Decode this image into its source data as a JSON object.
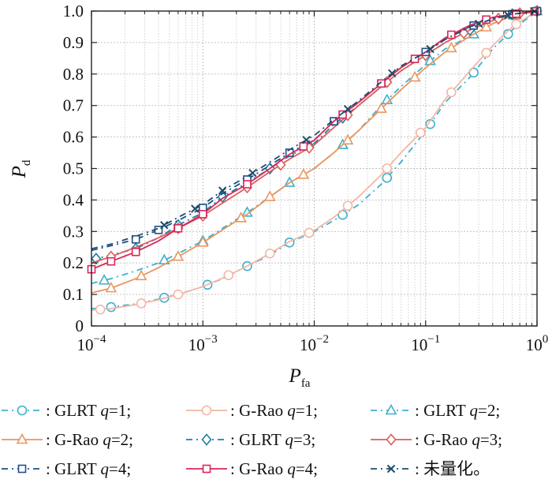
{
  "chart_data": {
    "type": "line",
    "xscale": "log",
    "xlim": [
      0.0001,
      1
    ],
    "ylim": [
      0,
      1
    ],
    "grid": true,
    "xlabel": {
      "main": "P",
      "sub": "fa"
    },
    "ylabel": {
      "main": "P",
      "sub": "d"
    },
    "xticks": [
      {
        "value": 0.0001,
        "base": "10",
        "exp": "−4"
      },
      {
        "value": 0.001,
        "base": "10",
        "exp": "−3"
      },
      {
        "value": 0.01,
        "base": "10",
        "exp": "−2"
      },
      {
        "value": 0.1,
        "base": "10",
        "exp": "−1"
      },
      {
        "value": 1,
        "base": "10",
        "exp": "0"
      }
    ],
    "yticks": [
      "0",
      "0.1",
      "0.2",
      "0.3",
      "0.4",
      "0.5",
      "0.6",
      "0.7",
      "0.8",
      "0.9",
      "1.0"
    ],
    "legend_placement": "bottom",
    "series": [
      {
        "name": "GLRT q=1;",
        "label_pre": ": GLRT ",
        "label_q": "q",
        "label_post": "=1;",
        "color": "#3db0cf",
        "dash": "8,5,2,5",
        "marker": "circle",
        "x": [
          0.0001,
          0.00015,
          0.00025,
          0.0004,
          0.0006,
          0.001,
          0.0015,
          0.0025,
          0.004,
          0.006,
          0.01,
          0.015,
          0.025,
          0.04,
          0.06,
          0.1,
          0.15,
          0.25,
          0.4,
          0.6,
          1
        ],
        "y": [
          0.055,
          0.06,
          0.07,
          0.085,
          0.1,
          0.125,
          0.15,
          0.19,
          0.225,
          0.265,
          0.3,
          0.335,
          0.385,
          0.45,
          0.52,
          0.62,
          0.71,
          0.79,
          0.88,
          0.94,
          1.0
        ],
        "mx": [
          0.00015,
          0.00045,
          0.0011,
          0.0025,
          0.006,
          0.018,
          0.045,
          0.11,
          0.27,
          0.55,
          1
        ]
      },
      {
        "name": "G-Rao q=1;",
        "label_pre": ": G-Rao ",
        "label_q": "q",
        "label_post": "=1;",
        "color": "#f3b7a4",
        "dash": "",
        "marker": "circle",
        "x": [
          0.0001,
          0.00015,
          0.00025,
          0.0004,
          0.0006,
          0.001,
          0.0015,
          0.0025,
          0.004,
          0.006,
          0.01,
          0.015,
          0.025,
          0.04,
          0.06,
          0.1,
          0.15,
          0.25,
          0.4,
          0.6,
          1
        ],
        "y": [
          0.05,
          0.055,
          0.068,
          0.083,
          0.1,
          0.125,
          0.152,
          0.19,
          0.23,
          0.268,
          0.303,
          0.345,
          0.41,
          0.48,
          0.55,
          0.63,
          0.72,
          0.81,
          0.89,
          0.95,
          1.0
        ],
        "mx": [
          0.00012,
          0.00028,
          0.0006,
          0.0017,
          0.004,
          0.009,
          0.02,
          0.045,
          0.09,
          0.17,
          0.35,
          0.65,
          1
        ]
      },
      {
        "name": "GLRT q=2;",
        "label_pre": ": GLRT ",
        "label_q": "q",
        "label_post": "=2;",
        "color": "#3db0cf",
        "dash": "8,5,2,5",
        "marker": "triangle",
        "x": [
          0.0001,
          0.00015,
          0.00025,
          0.0004,
          0.0006,
          0.001,
          0.0015,
          0.0025,
          0.004,
          0.006,
          0.01,
          0.015,
          0.025,
          0.04,
          0.06,
          0.1,
          0.15,
          0.25,
          0.4,
          0.6,
          1
        ],
        "y": [
          0.135,
          0.15,
          0.175,
          0.2,
          0.23,
          0.27,
          0.31,
          0.36,
          0.41,
          0.455,
          0.5,
          0.55,
          0.62,
          0.7,
          0.76,
          0.83,
          0.88,
          0.92,
          0.96,
          0.985,
          1.0
        ],
        "mx": [
          0.00013,
          0.00045,
          0.001,
          0.0025,
          0.006,
          0.018,
          0.045,
          0.11,
          0.27,
          0.62,
          1
        ]
      },
      {
        "name": "G-Rao q=2;",
        "label_pre": ": G-Rao ",
        "label_q": "q",
        "label_post": "=2;",
        "color": "#e9965f",
        "dash": "",
        "marker": "triangle",
        "x": [
          0.0001,
          0.00015,
          0.00025,
          0.0004,
          0.0006,
          0.001,
          0.0015,
          0.0025,
          0.004,
          0.006,
          0.01,
          0.015,
          0.025,
          0.04,
          0.06,
          0.1,
          0.15,
          0.25,
          0.4,
          0.6,
          1
        ],
        "y": [
          0.105,
          0.12,
          0.15,
          0.185,
          0.22,
          0.265,
          0.305,
          0.355,
          0.41,
          0.455,
          0.5,
          0.55,
          0.62,
          0.69,
          0.75,
          0.82,
          0.87,
          0.92,
          0.96,
          0.985,
          1.0
        ],
        "mx": [
          0.00015,
          0.00028,
          0.0006,
          0.001,
          0.0022,
          0.004,
          0.008,
          0.02,
          0.04,
          0.08,
          0.17,
          0.35,
          0.65,
          1
        ]
      },
      {
        "name": "GLRT q=3;",
        "label_pre": ": GLRT ",
        "label_q": "q",
        "label_post": "=3;",
        "color": "#1f7fa3",
        "dash": "8,5,2,5",
        "marker": "diamond",
        "x": [
          0.0001,
          0.00015,
          0.00025,
          0.0004,
          0.0006,
          0.001,
          0.0015,
          0.0025,
          0.004,
          0.006,
          0.01,
          0.015,
          0.025,
          0.04,
          0.06,
          0.1,
          0.15,
          0.25,
          0.4,
          0.6,
          1
        ],
        "y": [
          0.21,
          0.225,
          0.245,
          0.28,
          0.32,
          0.36,
          0.41,
          0.455,
          0.5,
          0.54,
          0.58,
          0.64,
          0.7,
          0.76,
          0.81,
          0.86,
          0.9,
          0.94,
          0.97,
          0.99,
          1.0
        ],
        "mx": [
          0.00011,
          0.00025,
          0.0006,
          0.0015,
          0.004,
          0.009,
          0.018,
          0.045,
          0.1,
          0.25,
          0.6,
          1
        ]
      },
      {
        "name": "G-Rao q=3;",
        "label_pre": ": G-Rao ",
        "label_q": "q",
        "label_post": "=3;",
        "color": "#d9605a",
        "dash": "",
        "marker": "diamond",
        "x": [
          0.0001,
          0.00015,
          0.00025,
          0.0004,
          0.0006,
          0.001,
          0.0015,
          0.0025,
          0.004,
          0.006,
          0.01,
          0.015,
          0.025,
          0.04,
          0.06,
          0.1,
          0.15,
          0.25,
          0.4,
          0.6,
          1
        ],
        "y": [
          0.2,
          0.22,
          0.25,
          0.28,
          0.31,
          0.35,
          0.39,
          0.44,
          0.49,
          0.53,
          0.575,
          0.63,
          0.7,
          0.76,
          0.81,
          0.86,
          0.9,
          0.94,
          0.97,
          0.99,
          1.0
        ],
        "mx": [
          0.00015,
          0.0006,
          0.001,
          0.0025,
          0.005,
          0.009,
          0.02,
          0.045,
          0.1,
          0.22,
          0.45,
          0.7,
          1
        ]
      },
      {
        "name": "GLRT q=4;",
        "label_pre": ": GLRT ",
        "label_q": "q",
        "label_post": "=4;",
        "color": "#1f4f8a",
        "dash": "8,5,2,5",
        "marker": "square",
        "x": [
          0.0001,
          0.00015,
          0.00025,
          0.0004,
          0.0006,
          0.001,
          0.0015,
          0.0025,
          0.004,
          0.006,
          0.01,
          0.015,
          0.025,
          0.04,
          0.06,
          0.1,
          0.15,
          0.25,
          0.4,
          0.6,
          1
        ],
        "y": [
          0.24,
          0.255,
          0.275,
          0.305,
          0.335,
          0.375,
          0.42,
          0.465,
          0.51,
          0.55,
          0.59,
          0.65,
          0.71,
          0.77,
          0.82,
          0.87,
          0.91,
          0.95,
          0.975,
          0.99,
          1.0
        ],
        "mx": [
          0.00025,
          0.0004,
          0.001,
          0.0025,
          0.006,
          0.015,
          0.04,
          0.1,
          0.27,
          0.6,
          1
        ]
      },
      {
        "name": "G-Rao q=4;",
        "label_pre": ": G-Rao ",
        "label_q": "q",
        "label_post": "=4;",
        "color": "#d8265a",
        "dash": "",
        "marker": "square",
        "x": [
          0.0001,
          0.00015,
          0.00025,
          0.0004,
          0.0006,
          0.001,
          0.0015,
          0.0025,
          0.004,
          0.006,
          0.01,
          0.015,
          0.025,
          0.04,
          0.06,
          0.1,
          0.15,
          0.25,
          0.4,
          0.6,
          1
        ],
        "y": [
          0.18,
          0.205,
          0.235,
          0.27,
          0.31,
          0.355,
          0.405,
          0.45,
          0.5,
          0.545,
          0.59,
          0.65,
          0.71,
          0.77,
          0.82,
          0.87,
          0.915,
          0.955,
          0.98,
          0.99,
          1.0
        ],
        "mx": [
          0.0001,
          0.00015,
          0.00025,
          0.0006,
          0.001,
          0.0025,
          0.008,
          0.018,
          0.04,
          0.08,
          0.17,
          0.35,
          0.65,
          0.95
        ]
      },
      {
        "name": "未量化。",
        "label_pre": ": 未量化。",
        "label_q": "",
        "label_post": "",
        "color": "#1b4f6b",
        "dash": "8,5,2,5",
        "marker": "x",
        "x": [
          0.0001,
          0.00015,
          0.00025,
          0.0004,
          0.0006,
          0.001,
          0.0015,
          0.0025,
          0.004,
          0.006,
          0.01,
          0.015,
          0.025,
          0.04,
          0.06,
          0.1,
          0.15,
          0.25,
          0.4,
          0.6,
          1
        ],
        "y": [
          0.245,
          0.26,
          0.285,
          0.31,
          0.345,
          0.385,
          0.43,
          0.475,
          0.52,
          0.56,
          0.605,
          0.655,
          0.715,
          0.775,
          0.825,
          0.87,
          0.91,
          0.95,
          0.975,
          0.99,
          1.0
        ],
        "mx": [
          0.00045,
          0.00085,
          0.0015,
          0.0028,
          0.0085,
          0.02,
          0.05,
          0.11,
          0.3,
          0.55,
          0.95
        ]
      }
    ]
  }
}
